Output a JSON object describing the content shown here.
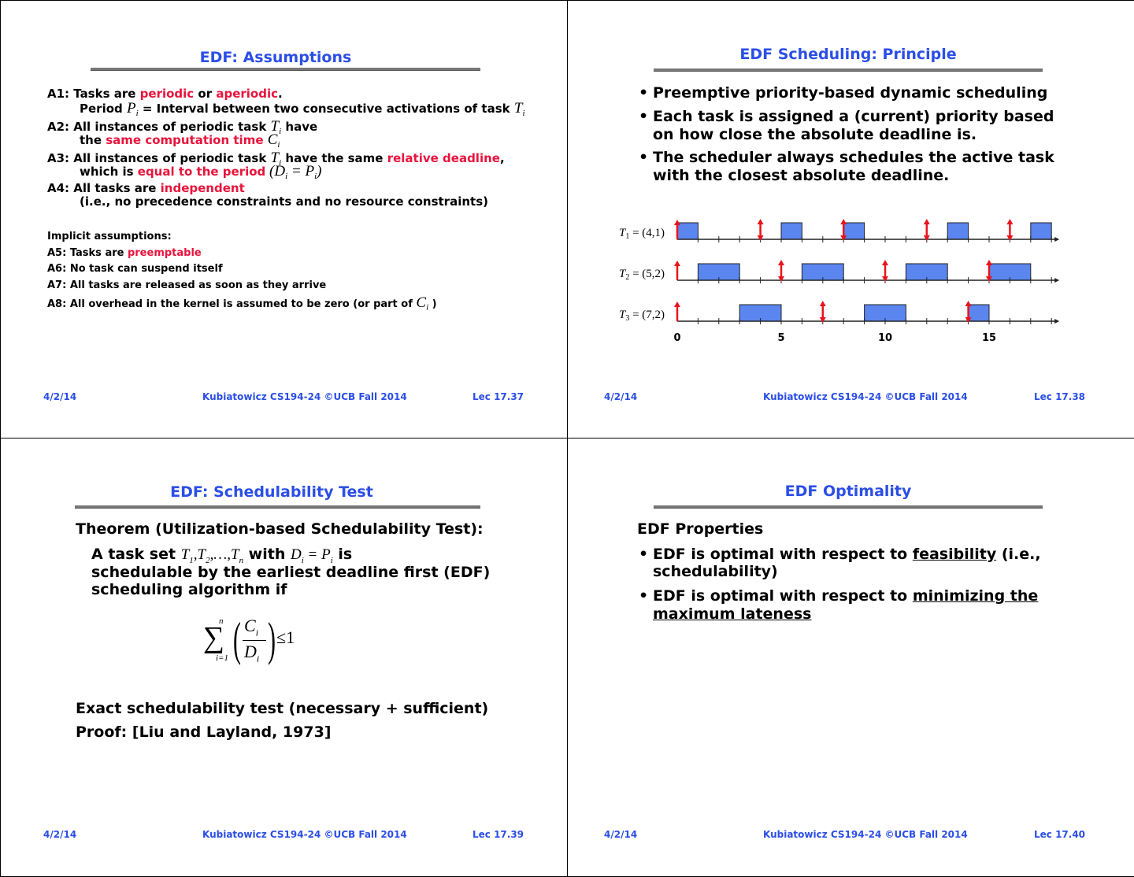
{
  "slides": [
    {
      "title": "EDF: Assumptions",
      "footer": {
        "date": "4/2/14",
        "credit": "Kubiatowicz CS194-24 ©UCB Fall 2014",
        "lec": "Lec 17.37"
      },
      "a1": [
        "A1: Tasks are ",
        "periodic",
        " or ",
        "aperiodic",
        "."
      ],
      "a1b": [
        "Period ",
        "P",
        "i",
        " = Interval between two consecutive activations of task ",
        "T",
        "i"
      ],
      "a2": [
        "A2: All instances of periodic task ",
        "T",
        "i",
        " have"
      ],
      "a2b": [
        "the ",
        "same computation time",
        " ",
        "C",
        "i"
      ],
      "a3": [
        "A3: All instances of periodic task ",
        "T",
        "i",
        " have the same ",
        "relative deadline",
        ","
      ],
      "a3b": [
        "which is ",
        "equal to the period",
        " (D",
        "i",
        " = P",
        "i",
        ")"
      ],
      "a4": [
        "A4: All tasks are ",
        "independent"
      ],
      "a4b": "(i.e., no precedence constraints and no resource constraints)",
      "implicit": "Implicit assumptions:",
      "a5": [
        "A5: Tasks are ",
        "preemptable"
      ],
      "a6": "A6: No task can suspend itself",
      "a7": "A7: All tasks are released as soon as they arrive",
      "a8": [
        "A8: All overhead in the kernel is assumed to be zero (or part of ",
        "C",
        "i",
        " )"
      ]
    },
    {
      "title": "EDF Scheduling: Principle",
      "footer": {
        "date": "4/2/14",
        "credit": "Kubiatowicz CS194-24 ©UCB Fall 2014",
        "lec": "Lec 17.38"
      },
      "bullets": [
        "Preemptive priority-based dynamic scheduling",
        "Each task is assigned a (current) priority based on how close the absolute deadline is.",
        "The scheduler always schedules the active task with the closest absolute deadline."
      ],
      "chart_data": {
        "type": "gantt",
        "xlim": [
          0,
          18
        ],
        "xticks": [
          "0",
          "5",
          "10",
          "15"
        ],
        "tasks": [
          {
            "label": "T1 = (4,1)",
            "name": "T",
            "sub": "1",
            "params": "(4,1)",
            "runs": [
              [
                0,
                1
              ],
              [
                5,
                6
              ],
              [
                8,
                9
              ],
              [
                13,
                14
              ],
              [
                17,
                18
              ]
            ],
            "deadlines": [
              4,
              8,
              12,
              16
            ]
          },
          {
            "label": "T2 = (5,2)",
            "name": "T",
            "sub": "2",
            "params": "(5,2)",
            "runs": [
              [
                1,
                3
              ],
              [
                6,
                8
              ],
              [
                11,
                13
              ],
              [
                15,
                17
              ]
            ],
            "deadlines": [
              5,
              10,
              15
            ]
          },
          {
            "label": "T3 = (7,2)",
            "name": "T",
            "sub": "3",
            "params": "(7,2)",
            "runs": [
              [
                3,
                5
              ],
              [
                9,
                11
              ],
              [
                14,
                15
              ]
            ],
            "deadlines": [
              7,
              14
            ]
          }
        ],
        "colors": {
          "run": "#5b86f0",
          "arrow": "#e8141c"
        }
      }
    },
    {
      "title": "EDF: Schedulability Test",
      "footer": {
        "date": "4/2/14",
        "credit": "Kubiatowicz CS194-24 ©UCB Fall 2014",
        "lec": "Lec 17.39"
      },
      "theorem": "Theorem (Utilization-based Schedulability Test):",
      "l1": [
        "A task set ",
        "T",
        "1",
        ",T",
        "2",
        ",…,T",
        "n",
        " with ",
        "D",
        "i",
        " = P",
        "i",
        " is"
      ],
      "l2": "schedulable by the earliest deadline first (EDF)",
      "l3": "scheduling algorithm if",
      "formula": {
        "sum_top": "n",
        "sum_bot": "i=1",
        "num": "C",
        "num_sub": "i",
        "den": "D",
        "den_sub": "i",
        "rhs": "≤1"
      },
      "exact": "Exact schedulability test (necessary + sufficient)",
      "proof": "Proof: [Liu and Layland, 1973]"
    },
    {
      "title": "EDF Optimality",
      "footer": {
        "date": "4/2/14",
        "credit": "Kubiatowicz CS194-24 ©UCB Fall 2014",
        "lec": "Lec 17.40"
      },
      "heading": "EDF Properties",
      "b1": [
        "EDF is optimal with respect to ",
        "feasibility",
        " (i.e.,"
      ],
      "b1b": "schedulability)",
      "b2": [
        "EDF is optimal with respect to ",
        "minimizing the"
      ],
      "b2b": "maximum lateness"
    }
  ]
}
